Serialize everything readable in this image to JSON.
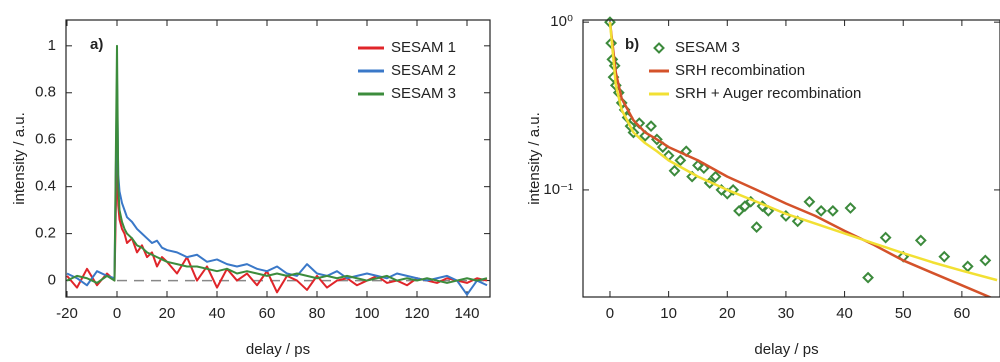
{
  "chart_data": [
    {
      "type": "line",
      "annotation": "a)",
      "xlabel": "delay / ps",
      "ylabel": "intensity / a.u.",
      "xlim": [
        -20.4,
        149.2
      ],
      "xticks": [
        -20,
        0,
        20,
        40,
        60,
        80,
        100,
        120,
        140
      ],
      "ylim": [
        -0.07,
        1.11
      ],
      "yticks": [
        0,
        0.2,
        0.4,
        0.6,
        0.8,
        1
      ],
      "hline": 0,
      "legend": "upper right",
      "x": [
        -20,
        -16,
        -12,
        -8,
        -4,
        -1,
        0,
        0.5,
        1,
        2,
        3,
        4,
        6,
        8,
        10,
        12,
        14,
        16,
        18,
        20,
        24,
        28,
        32,
        36,
        40,
        44,
        48,
        52,
        56,
        60,
        64,
        68,
        72,
        76,
        80,
        84,
        88,
        92,
        96,
        100,
        104,
        108,
        112,
        116,
        120,
        124,
        128,
        132,
        136,
        140,
        144,
        148
      ],
      "series": [
        {
          "name": "SESAM 1",
          "color": "#e0252a",
          "values": [
            0.02,
            -0.03,
            0.05,
            -0.02,
            0.03,
            0.0,
            0.55,
            0.32,
            0.26,
            0.22,
            0.2,
            0.16,
            0.18,
            0.12,
            0.15,
            0.1,
            0.12,
            0.06,
            0.1,
            0.08,
            0.03,
            0.1,
            0.0,
            0.06,
            -0.03,
            0.05,
            0.0,
            0.03,
            -0.02,
            0.04,
            -0.05,
            0.02,
            0.0,
            -0.04,
            0.02,
            -0.03,
            0.0,
            0.01,
            -0.02,
            0.0,
            0.02,
            -0.01,
            0.0,
            -0.02,
            0.01,
            0.0,
            -0.01,
            0.01,
            0.0,
            -0.01,
            0.01,
            0.0
          ]
        },
        {
          "name": "SESAM 2",
          "color": "#3a78c8",
          "values": [
            0.03,
            0.01,
            -0.02,
            0.04,
            0.02,
            0.01,
            0.85,
            0.45,
            0.38,
            0.33,
            0.3,
            0.27,
            0.25,
            0.22,
            0.2,
            0.18,
            0.16,
            0.17,
            0.14,
            0.13,
            0.12,
            0.1,
            0.11,
            0.08,
            0.09,
            0.07,
            0.06,
            0.07,
            0.05,
            0.04,
            0.06,
            0.03,
            0.02,
            0.07,
            0.03,
            0.02,
            0.04,
            0.01,
            0.02,
            0.03,
            0.02,
            0.01,
            0.03,
            0.02,
            0.01,
            0.0,
            0.01,
            0.02,
            0.0,
            -0.06,
            0.0,
            -0.02
          ]
        },
        {
          "name": "SESAM 3",
          "color": "#3c8c3c",
          "values": [
            0.0,
            0.02,
            0.01,
            -0.01,
            0.02,
            0.0,
            1.0,
            0.4,
            0.3,
            0.25,
            0.22,
            0.2,
            0.18,
            0.15,
            0.14,
            0.12,
            0.11,
            0.1,
            0.09,
            0.08,
            0.07,
            0.06,
            0.06,
            0.05,
            0.04,
            0.05,
            0.03,
            0.04,
            0.03,
            0.02,
            0.03,
            0.02,
            0.03,
            0.02,
            0.01,
            0.02,
            0.01,
            0.02,
            0.01,
            0.0,
            0.01,
            0.02,
            0.0,
            0.01,
            0.0,
            0.01,
            0.0,
            -0.01,
            0.0,
            0.01,
            0.0,
            0.01
          ]
        }
      ]
    },
    {
      "type": "line",
      "annotation": "b)",
      "xlabel": "delay / ps",
      "ylabel": "intensity / a.u.",
      "xlim": [
        -4.6,
        66.5
      ],
      "xticks": [
        0,
        10,
        20,
        30,
        40,
        50,
        60
      ],
      "ylim": [
        0.023,
        1.03
      ],
      "ylog": true,
      "yticks": [
        {
          "value": 0.1,
          "label": "10⁻¹"
        },
        {
          "value": 1,
          "label": "10⁰"
        }
      ],
      "legend": "upper left",
      "series": [
        {
          "name": "SESAM 3",
          "color": "#3c8a3c",
          "mode": "markers",
          "x": [
            0,
            0.2,
            0.4,
            0.6,
            0.8,
            1,
            1.5,
            2,
            2.5,
            3,
            3.5,
            4,
            5,
            6,
            7,
            8,
            9,
            10,
            11,
            12,
            13,
            14,
            15,
            16,
            17,
            18,
            19,
            20,
            21,
            22,
            23,
            24,
            25,
            26,
            27,
            30,
            32,
            34,
            36,
            38,
            41,
            44,
            47,
            50,
            53,
            57,
            61,
            64
          ],
          "values": [
            1.0,
            0.75,
            0.6,
            0.47,
            0.55,
            0.42,
            0.38,
            0.33,
            0.3,
            0.27,
            0.24,
            0.22,
            0.25,
            0.21,
            0.24,
            0.2,
            0.18,
            0.16,
            0.13,
            0.15,
            0.17,
            0.12,
            0.14,
            0.135,
            0.11,
            0.12,
            0.1,
            0.095,
            0.1,
            0.075,
            0.08,
            0.085,
            0.06,
            0.08,
            0.075,
            0.07,
            0.065,
            0.085,
            0.075,
            0.075,
            0.078,
            0.03,
            0.052,
            0.04,
            0.05,
            0.04,
            0.035,
            0.038
          ]
        },
        {
          "name": "SRH recombination",
          "color": "#d4522a",
          "mode": "line",
          "x": [
            0,
            1,
            2,
            4,
            6,
            8,
            10,
            15,
            20,
            25,
            30,
            35,
            40,
            45,
            50,
            55,
            60,
            66
          ],
          "values": [
            1.0,
            0.5,
            0.35,
            0.26,
            0.22,
            0.2,
            0.18,
            0.15,
            0.12,
            0.1,
            0.083,
            0.07,
            0.057,
            0.047,
            0.038,
            0.032,
            0.027,
            0.022
          ]
        },
        {
          "name": "SRH + Auger recombination",
          "color": "#f2e033",
          "mode": "line",
          "x": [
            0,
            1,
            2,
            4,
            6,
            8,
            10,
            15,
            20,
            25,
            30,
            35,
            40,
            45,
            50,
            55,
            60,
            66
          ],
          "values": [
            1.0,
            0.42,
            0.3,
            0.22,
            0.19,
            0.17,
            0.15,
            0.12,
            0.1,
            0.085,
            0.072,
            0.063,
            0.055,
            0.048,
            0.042,
            0.037,
            0.033,
            0.029
          ]
        }
      ]
    }
  ]
}
